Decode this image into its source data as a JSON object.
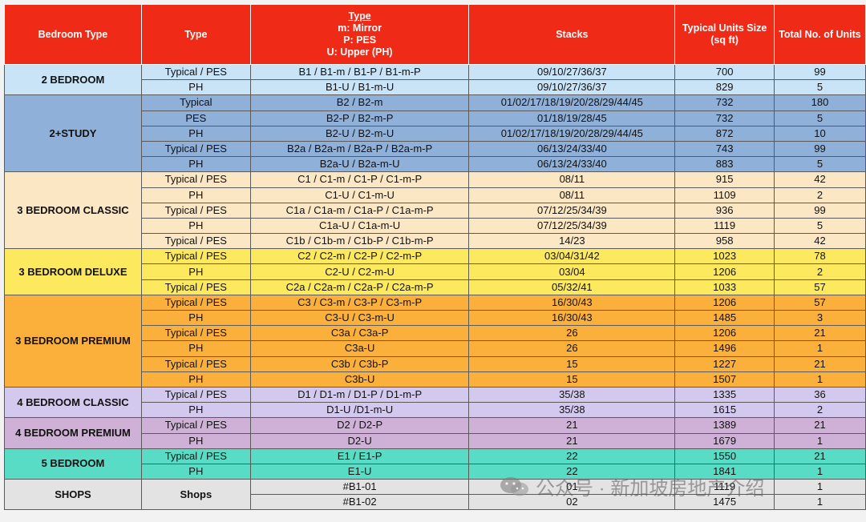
{
  "header": {
    "bedroom_type": "Bedroom Type",
    "type": "Type",
    "type_code_title": "Type",
    "type_code_m": "m: Mirror",
    "type_code_p": "P: PES",
    "type_code_u": "U: Upper (PH)",
    "stacks": "Stacks",
    "unit_size": "Typical Units Size (sq ft)",
    "total_units": "Total No. of Units"
  },
  "groups": [
    {
      "name": "2 BEDROOM",
      "color": "#c9e3f7",
      "cls": "c-2br",
      "rows": [
        {
          "type": "Typical / PES",
          "code": "B1 / B1-m / B1-P / B1-m-P",
          "stacks": "09/10/27/36/37",
          "size": "700",
          "units": "99"
        },
        {
          "type": "PH",
          "code": "B1-U / B1-m-U",
          "stacks": "09/10/27/36/37",
          "size": "829",
          "units": "5"
        }
      ]
    },
    {
      "name": "2+STUDY",
      "color": "#8fb0d8",
      "cls": "c-2st",
      "rows": [
        {
          "type": "Typical",
          "code": "B2 / B2-m",
          "stacks": "01/02/17/18/19/20/28/29/44/45",
          "size": "732",
          "units": "180"
        },
        {
          "type": "PES",
          "code": "B2-P / B2-m-P",
          "stacks": "01/18/19/28/45",
          "size": "732",
          "units": "5"
        },
        {
          "type": "PH",
          "code": "B2-U / B2-m-U",
          "stacks": "01/02/17/18/19/20/28/29/44/45",
          "size": "872",
          "units": "10"
        },
        {
          "type": "Typical / PES",
          "code": "B2a / B2a-m / B2a-P / B2a-m-P",
          "stacks": "06/13/24/33/40",
          "size": "743",
          "units": "99"
        },
        {
          "type": "PH",
          "code": "B2a-U / B2a-m-U",
          "stacks": "06/13/24/33/40",
          "size": "883",
          "units": "5"
        }
      ]
    },
    {
      "name": "3 BEDROOM CLASSIC",
      "color": "#fbe7c3",
      "cls": "c-3cl",
      "rows": [
        {
          "type": "Typical / PES",
          "code": "C1 / C1-m / C1-P / C1-m-P",
          "stacks": "08/11",
          "size": "915",
          "units": "42"
        },
        {
          "type": "PH",
          "code": "C1-U / C1-m-U",
          "stacks": "08/11",
          "size": "1109",
          "units": "2"
        },
        {
          "type": "Typical / PES",
          "code": "C1a / C1a-m / C1a-P / C1a-m-P",
          "stacks": "07/12/25/34/39",
          "size": "936",
          "units": "99"
        },
        {
          "type": "PH",
          "code": "C1a-U / C1a-m-U",
          "stacks": "07/12/25/34/39",
          "size": "1119",
          "units": "5"
        },
        {
          "type": "Typical / PES",
          "code": "C1b / C1b-m / C1b-P / C1b-m-P",
          "stacks": "14/23",
          "size": "958",
          "units": "42"
        }
      ]
    },
    {
      "name": "3 BEDROOM DELUXE",
      "color": "#fce95e",
      "cls": "c-3dx",
      "rows": [
        {
          "type": "Typical / PES",
          "code": "C2 / C2-m / C2-P / C2-m-P",
          "stacks": "03/04/31/42",
          "size": "1023",
          "units": "78"
        },
        {
          "type": "PH",
          "code": "C2-U / C2-m-U",
          "stacks": "03/04",
          "size": "1206",
          "units": "2"
        },
        {
          "type": "Typical / PES",
          "code": "C2a / C2a-m / C2a-P / C2a-m-P",
          "stacks": "05/32/41",
          "size": "1033",
          "units": "57"
        }
      ]
    },
    {
      "name": "3 BEDROOM PREMIUM",
      "color": "#fbb03b",
      "cls": "c-3pr",
      "rows": [
        {
          "type": "Typical / PES",
          "code": "C3 / C3-m / C3-P / C3-m-P",
          "stacks": "16/30/43",
          "size": "1206",
          "units": "57"
        },
        {
          "type": "PH",
          "code": "C3-U / C3-m-U",
          "stacks": "16/30/43",
          "size": "1485",
          "units": "3"
        },
        {
          "type": "Typical / PES",
          "code": "C3a / C3a-P",
          "stacks": "26",
          "size": "1206",
          "units": "21"
        },
        {
          "type": "PH",
          "code": "C3a-U",
          "stacks": "26",
          "size": "1496",
          "units": "1"
        },
        {
          "type": "Typical / PES",
          "code": "C3b / C3b-P",
          "stacks": "15",
          "size": "1227",
          "units": "21"
        },
        {
          "type": "PH",
          "code": "C3b-U",
          "stacks": "15",
          "size": "1507",
          "units": "1"
        }
      ]
    },
    {
      "name": "4 BEDROOM CLASSIC",
      "color": "#d3c9ee",
      "cls": "c-4cl",
      "rows": [
        {
          "type": "Typical / PES",
          "code": "D1 / D1-m / D1-P / D1-m-P",
          "stacks": "35/38",
          "size": "1335",
          "units": "36"
        },
        {
          "type": "PH",
          "code": "D1-U /D1-m-U",
          "stacks": "35/38",
          "size": "1615",
          "units": "2"
        }
      ]
    },
    {
      "name": "4 BEDROOM PREMIUM",
      "color": "#cfb0d6",
      "cls": "c-4pr",
      "rows": [
        {
          "type": "Typical / PES",
          "code": "D2 / D2-P",
          "stacks": "21",
          "size": "1389",
          "units": "21"
        },
        {
          "type": "PH",
          "code": "D2-U",
          "stacks": "21",
          "size": "1679",
          "units": "1"
        }
      ]
    },
    {
      "name": "5 BEDROOM",
      "color": "#58dcc6",
      "cls": "c-5br",
      "rows": [
        {
          "type": "Typical / PES",
          "code": "E1 / E1-P",
          "stacks": "22",
          "size": "1550",
          "units": "21"
        },
        {
          "type": "PH",
          "code": "E1-U",
          "stacks": "22",
          "size": "1841",
          "units": "1"
        }
      ]
    },
    {
      "name": "SHOPS",
      "color": "#e3e3e3",
      "cls": "c-shop",
      "shared_type": "Shops",
      "rows": [
        {
          "code": "#B1-01",
          "stacks": "01",
          "size": "1119",
          "units": "1"
        },
        {
          "code": "#B1-02",
          "stacks": "02",
          "size": "1475",
          "units": "1"
        }
      ]
    }
  ],
  "watermark": {
    "text": "公众号 · 新加坡房地产介绍",
    "icon": "wechat-icon"
  }
}
